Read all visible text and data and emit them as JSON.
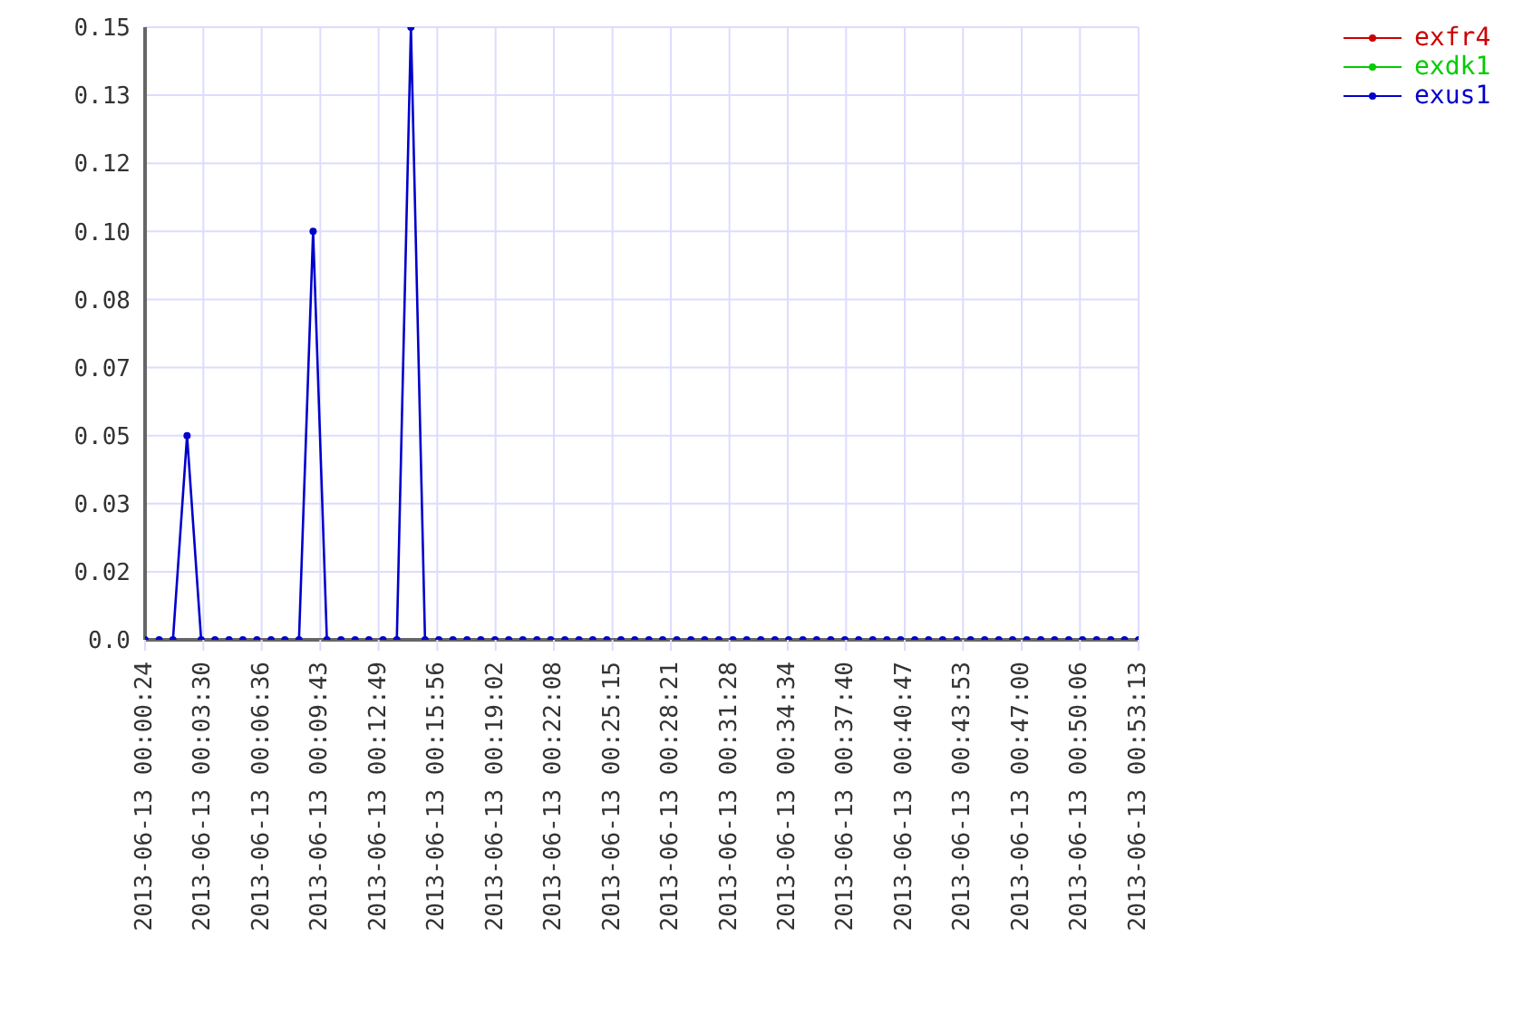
{
  "chart_data": {
    "type": "line",
    "x": [
      "2013-06-13T00:00:24",
      "2013-06-13T00:01:09",
      "2013-06-13T00:01:53",
      "2013-06-13T00:02:38",
      "2013-06-13T00:03:23",
      "2013-06-13T00:04:07",
      "2013-06-13T00:04:52",
      "2013-06-13T00:05:36",
      "2013-06-13T00:06:21",
      "2013-06-13T00:07:06",
      "2013-06-13T00:07:50",
      "2013-06-13T00:08:35",
      "2013-06-13T00:09:20",
      "2013-06-13T00:10:04",
      "2013-06-13T00:10:49",
      "2013-06-13T00:11:34",
      "2013-06-13T00:12:18",
      "2013-06-13T00:13:03",
      "2013-06-13T00:13:47",
      "2013-06-13T00:14:32",
      "2013-06-13T00:15:17",
      "2013-06-13T00:16:01",
      "2013-06-13T00:16:46",
      "2013-06-13T00:17:31",
      "2013-06-13T00:18:15",
      "2013-06-13T00:19:00",
      "2013-06-13T00:19:44",
      "2013-06-13T00:20:29",
      "2013-06-13T00:21:14",
      "2013-06-13T00:21:58",
      "2013-06-13T00:22:43",
      "2013-06-13T00:23:28",
      "2013-06-13T00:24:12",
      "2013-06-13T00:24:57",
      "2013-06-13T00:25:42",
      "2013-06-13T00:26:26",
      "2013-06-13T00:27:11",
      "2013-06-13T00:27:55",
      "2013-06-13T00:28:40",
      "2013-06-13T00:29:25",
      "2013-06-13T00:30:09",
      "2013-06-13T00:30:54",
      "2013-06-13T00:31:39",
      "2013-06-13T00:32:23",
      "2013-06-13T00:33:08",
      "2013-06-13T00:33:53",
      "2013-06-13T00:34:37",
      "2013-06-13T00:35:22",
      "2013-06-13T00:36:06",
      "2013-06-13T00:36:51",
      "2013-06-13T00:37:36",
      "2013-06-13T00:38:20",
      "2013-06-13T00:39:05",
      "2013-06-13T00:39:50",
      "2013-06-13T00:40:34",
      "2013-06-13T00:41:19",
      "2013-06-13T00:42:03",
      "2013-06-13T00:42:48",
      "2013-06-13T00:43:33",
      "2013-06-13T00:44:17",
      "2013-06-13T00:45:02",
      "2013-06-13T00:45:47",
      "2013-06-13T00:46:31",
      "2013-06-13T00:47:16",
      "2013-06-13T00:48:01",
      "2013-06-13T00:48:45",
      "2013-06-13T00:49:30",
      "2013-06-13T00:50:14",
      "2013-06-13T00:50:59",
      "2013-06-13T00:51:44",
      "2013-06-13T00:52:28",
      "2013-06-13T00:53:13"
    ],
    "series": [
      {
        "name": "exfr4",
        "color": "#cc0000",
        "values": [
          null,
          null,
          null,
          null,
          null,
          null,
          null,
          null,
          null,
          null,
          null,
          null,
          null,
          null,
          null,
          null,
          null,
          null,
          null,
          null,
          null,
          null,
          null,
          null,
          null,
          null,
          null,
          null,
          null,
          null,
          null,
          null,
          null,
          null,
          null,
          null,
          null,
          null,
          null,
          null,
          null,
          null,
          null,
          null,
          null,
          null,
          null,
          null,
          null,
          null,
          null,
          null,
          null,
          null,
          null,
          null,
          null,
          null,
          null,
          null,
          null,
          null,
          null,
          null,
          null,
          null,
          null,
          null,
          null,
          null,
          null,
          null
        ]
      },
      {
        "name": "exdk1",
        "color": "#00cc00",
        "values": [
          null,
          null,
          null,
          null,
          null,
          null,
          null,
          null,
          null,
          null,
          null,
          null,
          null,
          null,
          null,
          null,
          null,
          null,
          null,
          null,
          null,
          null,
          null,
          null,
          null,
          null,
          null,
          null,
          null,
          null,
          null,
          null,
          null,
          null,
          null,
          null,
          null,
          null,
          null,
          null,
          null,
          null,
          null,
          null,
          null,
          null,
          null,
          null,
          null,
          null,
          null,
          null,
          null,
          null,
          null,
          null,
          null,
          null,
          null,
          null,
          null,
          null,
          null,
          null,
          null,
          null,
          null,
          null,
          null,
          null,
          null,
          null
        ]
      },
      {
        "name": "exus1",
        "color": "#0000cc",
        "values": [
          0,
          0,
          0,
          0.05,
          0,
          0,
          0,
          0,
          0,
          0,
          0,
          0,
          0.1,
          0,
          0,
          0,
          0,
          0,
          0,
          0.15,
          0,
          0,
          0,
          0,
          0,
          0,
          0,
          0,
          0,
          0,
          0,
          0,
          0,
          0,
          0,
          0,
          0,
          0,
          0,
          0,
          0,
          0,
          0,
          0,
          0,
          0,
          0,
          0,
          0,
          0,
          0,
          0,
          0,
          0,
          0,
          0,
          0,
          0,
          0,
          0,
          0,
          0,
          0,
          0,
          0,
          0,
          0,
          0,
          0,
          0,
          0,
          0
        ]
      }
    ],
    "xlim": [
      "2013-06-13T00:00:24",
      "2013-06-13T00:53:13"
    ],
    "xticks": [
      {
        "value": "2013-06-13T00:00:24",
        "label": "2013-06-13 00:00:24"
      },
      {
        "value": "2013-06-13T00:03:30",
        "label": "2013-06-13 00:03:30"
      },
      {
        "value": "2013-06-13T00:06:36",
        "label": "2013-06-13 00:06:36"
      },
      {
        "value": "2013-06-13T00:09:43",
        "label": "2013-06-13 00:09:43"
      },
      {
        "value": "2013-06-13T00:12:49",
        "label": "2013-06-13 00:12:49"
      },
      {
        "value": "2013-06-13T00:15:56",
        "label": "2013-06-13 00:15:56"
      },
      {
        "value": "2013-06-13T00:19:02",
        "label": "2013-06-13 00:19:02"
      },
      {
        "value": "2013-06-13T00:22:08",
        "label": "2013-06-13 00:22:08"
      },
      {
        "value": "2013-06-13T00:25:15",
        "label": "2013-06-13 00:25:15"
      },
      {
        "value": "2013-06-13T00:28:21",
        "label": "2013-06-13 00:28:21"
      },
      {
        "value": "2013-06-13T00:31:28",
        "label": "2013-06-13 00:31:28"
      },
      {
        "value": "2013-06-13T00:34:34",
        "label": "2013-06-13 00:34:34"
      },
      {
        "value": "2013-06-13T00:37:40",
        "label": "2013-06-13 00:37:40"
      },
      {
        "value": "2013-06-13T00:40:47",
        "label": "2013-06-13 00:40:47"
      },
      {
        "value": "2013-06-13T00:43:53",
        "label": "2013-06-13 00:43:53"
      },
      {
        "value": "2013-06-13T00:47:00",
        "label": "2013-06-13 00:47:00"
      },
      {
        "value": "2013-06-13T00:50:06",
        "label": "2013-06-13 00:50:06"
      },
      {
        "value": "2013-06-13T00:53:13",
        "label": "2013-06-13 00:53:13"
      }
    ],
    "ylim": [
      0,
      0.15
    ],
    "yticks": [
      {
        "value": 0,
        "label": "0.0"
      },
      {
        "value": 0.016667,
        "label": "0.02"
      },
      {
        "value": 0.033333,
        "label": "0.03"
      },
      {
        "value": 0.05,
        "label": "0.05"
      },
      {
        "value": 0.066667,
        "label": "0.07"
      },
      {
        "value": 0.083333,
        "label": "0.08"
      },
      {
        "value": 0.1,
        "label": "0.10"
      },
      {
        "value": 0.116667,
        "label": "0.12"
      },
      {
        "value": 0.133333,
        "label": "0.13"
      },
      {
        "value": 0.15,
        "label": "0.15"
      }
    ],
    "grid": true,
    "legend": "top right",
    "marker": "circle",
    "line_style": "solid"
  }
}
